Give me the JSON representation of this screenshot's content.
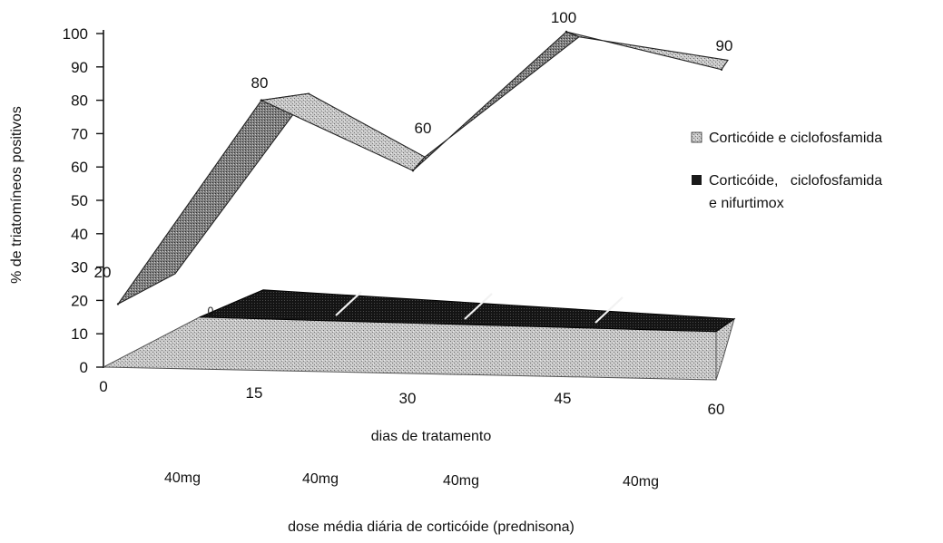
{
  "chart_data": {
    "type": "line",
    "x": [
      0,
      15,
      30,
      45,
      60
    ],
    "x_tick_labels": [
      "0",
      "15",
      "30",
      "45",
      "60"
    ],
    "y_ticks": [
      0,
      10,
      20,
      30,
      40,
      50,
      60,
      70,
      80,
      90,
      100
    ],
    "ylim": [
      0,
      100
    ],
    "ylabel": "% de triatomíneos positivos",
    "xlabel": "dias de tratamento",
    "dose_labels": [
      "40mg",
      "40mg",
      "40mg",
      "40mg"
    ],
    "dose_caption": "dose média diária de corticóide (prednisona)",
    "series": [
      {
        "name": "Corticóide e ciclofosfamida",
        "values": [
          20,
          80,
          60,
          100,
          90
        ],
        "value_labels": [
          "20",
          "80",
          "60",
          "100",
          "90"
        ],
        "color": "#9a9a9a"
      },
      {
        "name": "Corticóide,  ciclofosfamida e nifurtimox",
        "values": [
          0,
          15,
          15,
          15,
          15
        ],
        "value_labels": [
          "0",
          "",
          "",
          "",
          ""
        ],
        "color": "#1a1a1a"
      }
    ],
    "legend_position": "right",
    "grid": false,
    "style": "3d-ribbon"
  }
}
